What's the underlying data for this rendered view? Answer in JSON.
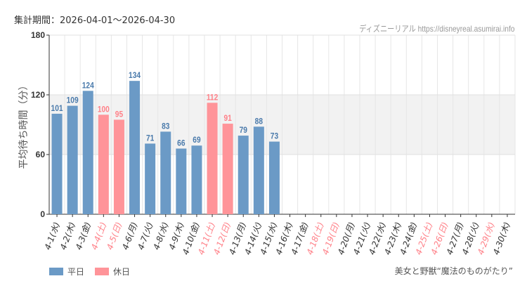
{
  "header": {
    "period": "集計期間：2026-04-01～2026-04-30",
    "credit": "ディズニーリアル https://disneyreal.asumirai.info"
  },
  "attraction": "美女と野獣“魔法のものがたり”",
  "colors": {
    "weekday": "#6b9ac6",
    "holiday": "#ff9499",
    "weekday_label": "#4a7aab",
    "holiday_label": "#ff8088",
    "axis_text": "#333",
    "band": "#f2f2f2"
  },
  "chart_data": {
    "type": "bar",
    "title": "",
    "ylabel": "平均待ち時間（分）",
    "xlabel": "",
    "ylim": [
      0,
      180
    ],
    "yticks": [
      0,
      60,
      120,
      180
    ],
    "shaded_band": [
      60,
      120
    ],
    "grid": true,
    "legend": {
      "placement": "bottom-left",
      "items": [
        {
          "name": "平日",
          "color": "#6b9ac6"
        },
        {
          "name": "休日",
          "color": "#ff9499"
        }
      ]
    },
    "categories": [
      "4-1(水)",
      "4-2(木)",
      "4-3(金)",
      "4-4(土)",
      "4-5(日)",
      "4-6(月)",
      "4-7(火)",
      "4-8(水)",
      "4-9(木)",
      "4-10(金)",
      "4-11(土)",
      "4-12(日)",
      "4-13(月)",
      "4-14(火)",
      "4-15(水)",
      "4-16(木)",
      "4-17(金)",
      "4-18(土)",
      "4-19(日)",
      "4-20(月)",
      "4-21(火)",
      "4-22(水)",
      "4-23(木)",
      "4-24(金)",
      "4-25(土)",
      "4-26(日)",
      "4-27(月)",
      "4-28(火)",
      "4-29(水)",
      "4-30(木)"
    ],
    "holiday": [
      false,
      false,
      false,
      true,
      true,
      false,
      false,
      false,
      false,
      false,
      true,
      true,
      false,
      false,
      false,
      false,
      false,
      true,
      true,
      false,
      false,
      false,
      false,
      false,
      true,
      true,
      false,
      false,
      true,
      false
    ],
    "values": [
      101,
      109,
      124,
      100,
      95,
      134,
      71,
      83,
      66,
      69,
      112,
      91,
      79,
      88,
      73,
      null,
      null,
      null,
      null,
      null,
      null,
      null,
      null,
      null,
      null,
      null,
      null,
      null,
      null,
      null
    ]
  }
}
